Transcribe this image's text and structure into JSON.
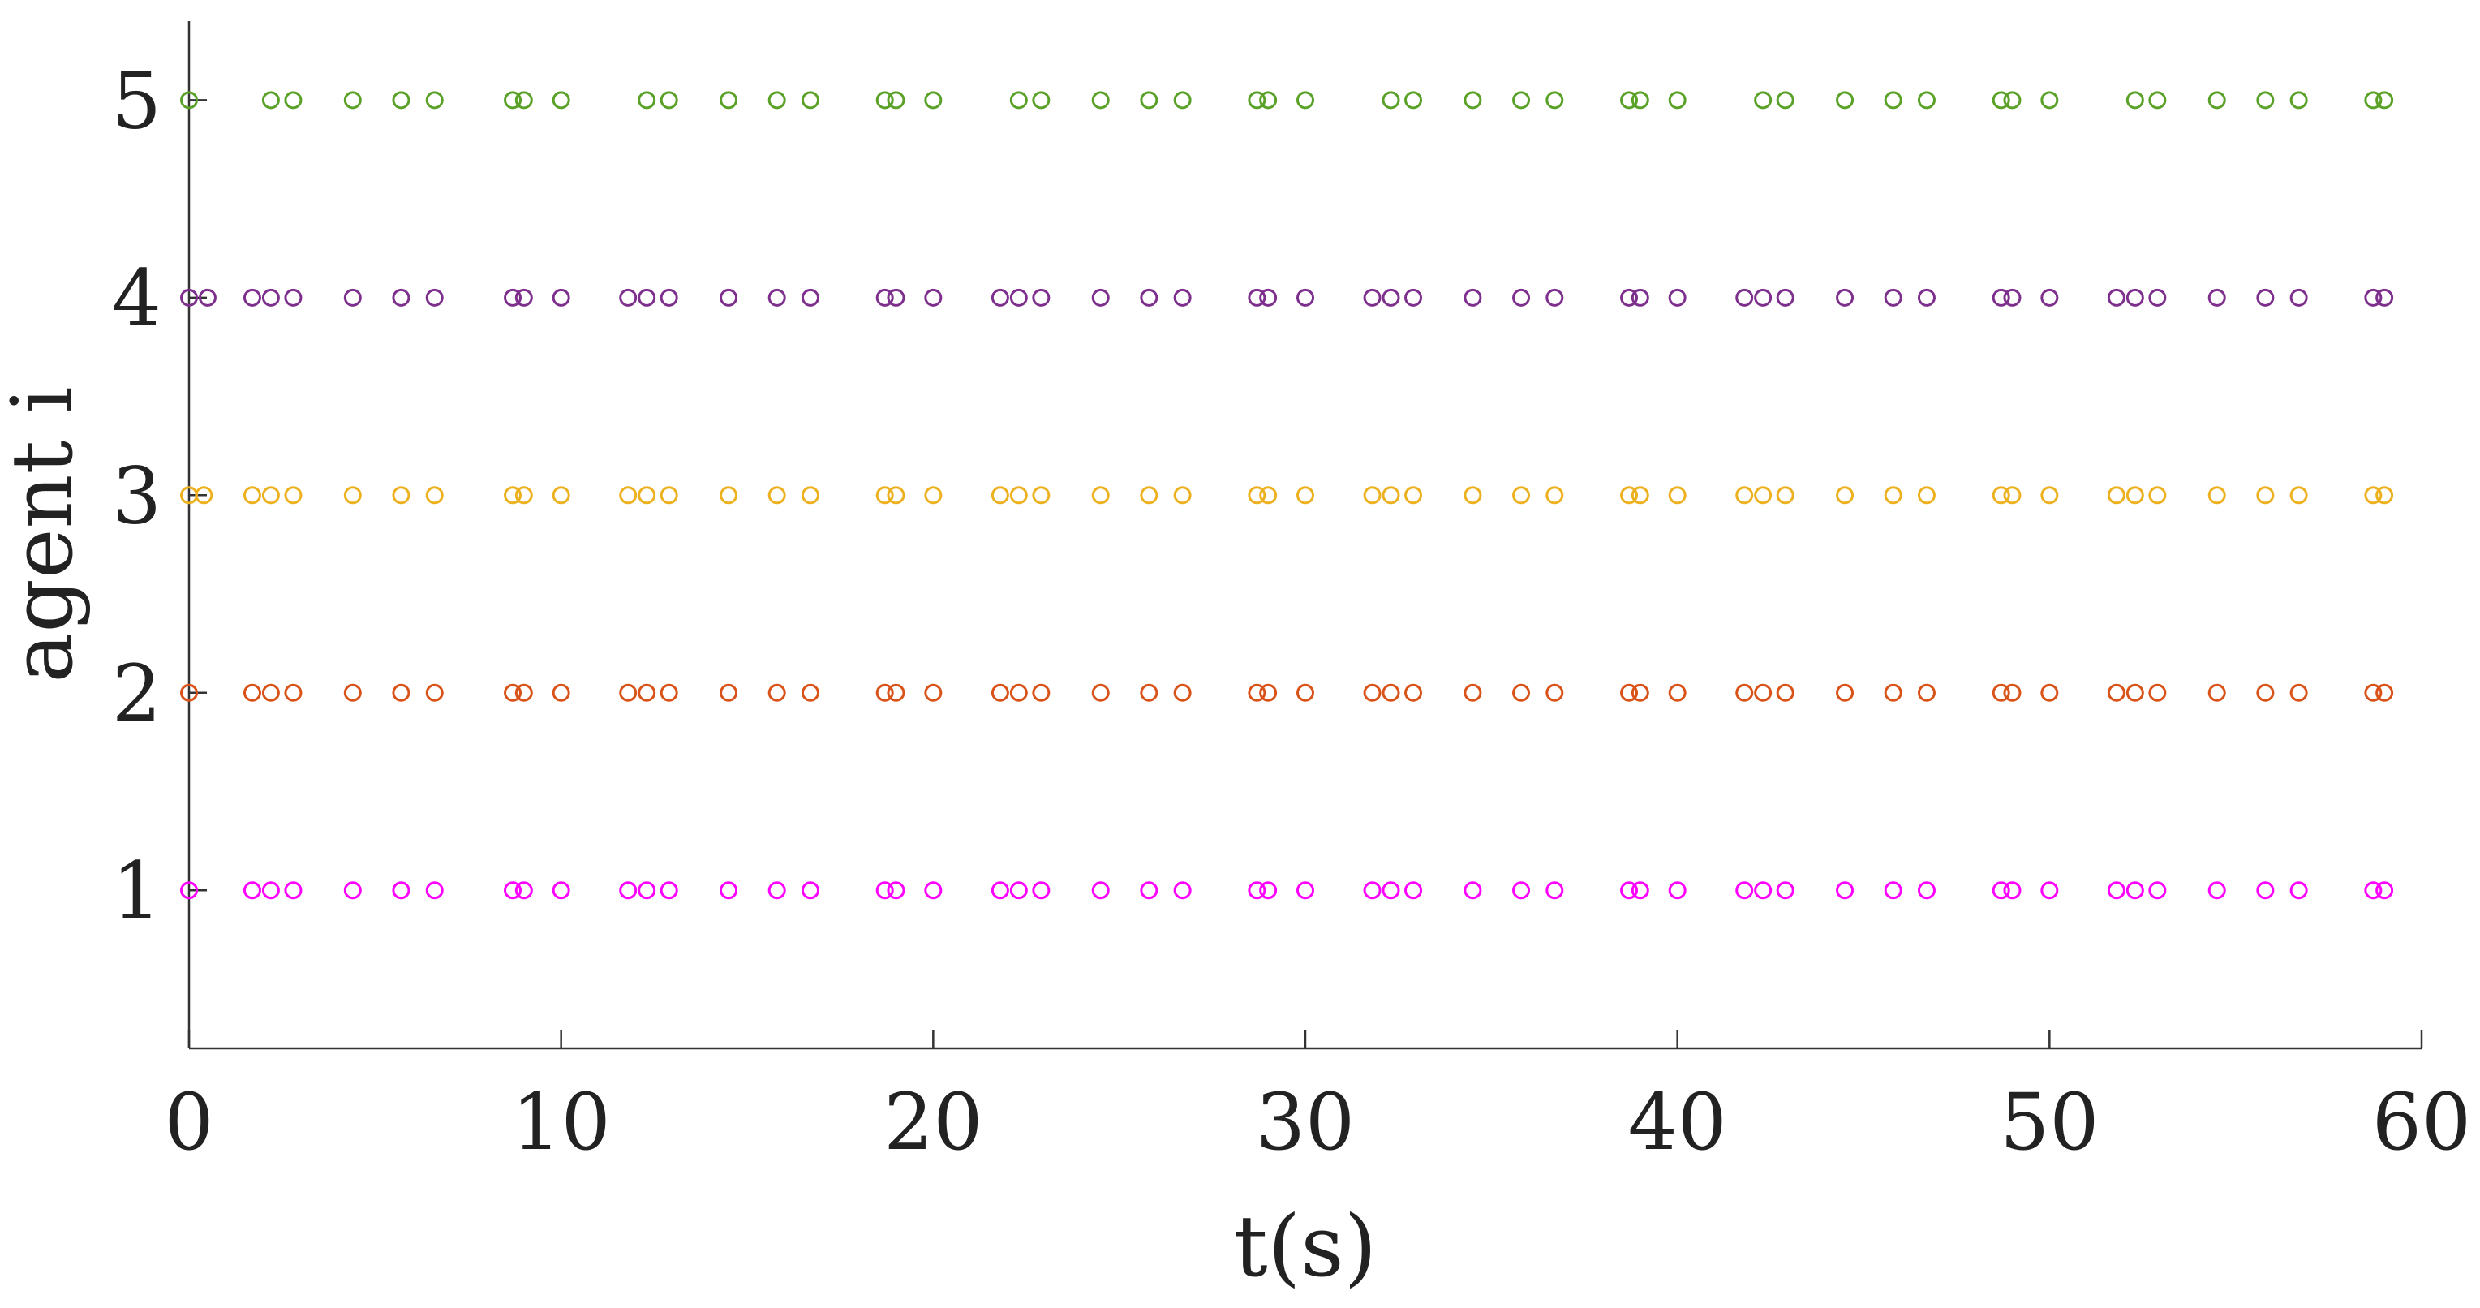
{
  "chart_data": {
    "type": "scatter",
    "title": "",
    "xlabel": "t(s)",
    "ylabel": "agent i",
    "xlim": [
      0,
      60
    ],
    "ylim": [
      0.2,
      5.4
    ],
    "xticks": [
      "0",
      "10",
      "20",
      "30",
      "40",
      "50",
      "60"
    ],
    "yticks": [
      "1",
      "2",
      "3",
      "4",
      "5"
    ],
    "grid": false,
    "legend": "none",
    "series": [
      {
        "agent": 1,
        "color": "#ff00ff",
        "x": [
          0.0,
          1.7,
          2.2,
          2.8,
          4.4,
          5.7,
          6.6,
          8.7,
          9.0,
          10.0,
          11.8,
          12.3,
          12.9,
          14.5,
          15.8,
          16.7,
          18.7,
          19.0,
          20.0,
          21.8,
          22.3,
          22.9,
          24.5,
          25.8,
          26.7,
          28.7,
          29.0,
          30.0,
          31.8,
          32.3,
          32.9,
          34.5,
          35.8,
          36.7,
          38.7,
          39.0,
          40.0,
          41.8,
          42.3,
          42.9,
          44.5,
          45.8,
          46.7,
          48.7,
          49.0,
          50.0,
          51.8,
          52.3,
          52.9,
          54.5,
          55.8,
          56.7,
          58.7,
          59.0
        ]
      },
      {
        "agent": 2,
        "color": "#d95319",
        "x": [
          0.0,
          1.7,
          2.2,
          2.8,
          4.4,
          5.7,
          6.6,
          8.7,
          9.0,
          10.0,
          11.8,
          12.3,
          12.9,
          14.5,
          15.8,
          16.7,
          18.7,
          19.0,
          20.0,
          21.8,
          22.3,
          22.9,
          24.5,
          25.8,
          26.7,
          28.7,
          29.0,
          30.0,
          31.8,
          32.3,
          32.9,
          34.5,
          35.8,
          36.7,
          38.7,
          39.0,
          40.0,
          41.8,
          42.3,
          42.9,
          44.5,
          45.8,
          46.7,
          48.7,
          49.0,
          50.0,
          51.8,
          52.3,
          52.9,
          54.5,
          55.8,
          56.7,
          58.7,
          59.0
        ]
      },
      {
        "agent": 3,
        "color": "#edb120",
        "x": [
          0.0,
          0.4,
          1.7,
          2.2,
          2.8,
          4.4,
          5.7,
          6.6,
          8.7,
          9.0,
          10.0,
          11.8,
          12.3,
          12.9,
          14.5,
          15.8,
          16.7,
          18.7,
          19.0,
          20.0,
          21.8,
          22.3,
          22.9,
          24.5,
          25.8,
          26.7,
          28.7,
          29.0,
          30.0,
          31.8,
          32.3,
          32.9,
          34.5,
          35.8,
          36.7,
          38.7,
          39.0,
          40.0,
          41.8,
          42.3,
          42.9,
          44.5,
          45.8,
          46.7,
          48.7,
          49.0,
          50.0,
          51.8,
          52.3,
          52.9,
          54.5,
          55.8,
          56.7,
          58.7,
          59.0
        ]
      },
      {
        "agent": 4,
        "color": "#7e2f8e",
        "x": [
          0.0,
          0.5,
          1.7,
          2.2,
          2.8,
          4.4,
          5.7,
          6.6,
          8.7,
          9.0,
          10.0,
          11.8,
          12.3,
          12.9,
          14.5,
          15.8,
          16.7,
          18.7,
          19.0,
          20.0,
          21.8,
          22.3,
          22.9,
          24.5,
          25.8,
          26.7,
          28.7,
          29.0,
          30.0,
          31.8,
          32.3,
          32.9,
          34.5,
          35.8,
          36.7,
          38.7,
          39.0,
          40.0,
          41.8,
          42.3,
          42.9,
          44.5,
          45.8,
          46.7,
          48.7,
          49.0,
          50.0,
          51.8,
          52.3,
          52.9,
          54.5,
          55.8,
          56.7,
          58.7,
          59.0
        ]
      },
      {
        "agent": 5,
        "color": "#5aa128",
        "x": [
          0.0,
          2.2,
          2.8,
          4.4,
          5.7,
          6.6,
          8.7,
          9.0,
          10.0,
          12.3,
          12.9,
          14.5,
          15.8,
          16.7,
          18.7,
          19.0,
          20.0,
          22.3,
          22.9,
          24.5,
          25.8,
          26.7,
          28.7,
          29.0,
          30.0,
          32.3,
          32.9,
          34.5,
          35.8,
          36.7,
          38.7,
          39.0,
          40.0,
          42.3,
          42.9,
          44.5,
          45.8,
          46.7,
          48.7,
          49.0,
          50.0,
          52.3,
          52.9,
          54.5,
          55.8,
          56.7,
          58.7,
          59.0
        ]
      }
    ]
  }
}
